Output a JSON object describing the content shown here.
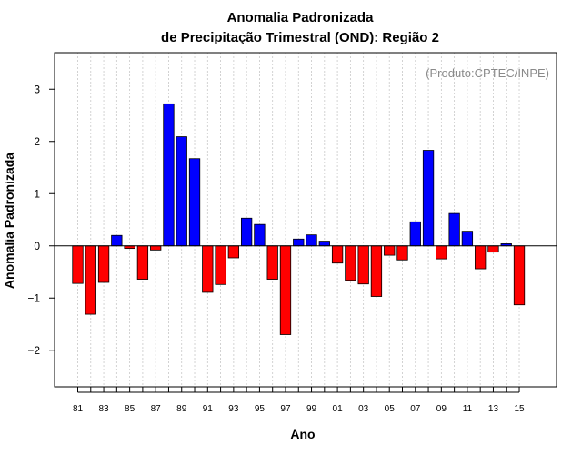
{
  "chart_data": {
    "type": "bar",
    "title": "Anomalia Padronizada",
    "subtitle": "de Precipitação Trimestral (OND): Região 2",
    "annotation": "(Produto:CPTEC/INPE)",
    "xlabel": "Ano",
    "ylabel": "Anomalia Padronizada",
    "ylim": [
      -2.7,
      3.7
    ],
    "yticks": [
      -2,
      -1,
      0,
      1,
      2,
      3
    ],
    "x_ticks_shown": [
      "81",
      "83",
      "85",
      "87",
      "89",
      "91",
      "93",
      "95",
      "97",
      "99",
      "01",
      "03",
      "05",
      "07",
      "09",
      "11",
      "13",
      "15"
    ],
    "grid": "vertical dotted",
    "positive_color": "#0000ff",
    "negative_color": "#ff0000",
    "categories": [
      "81",
      "82",
      "83",
      "84",
      "85",
      "86",
      "87",
      "88",
      "89",
      "90",
      "91",
      "92",
      "93",
      "94",
      "95",
      "96",
      "97",
      "98",
      "99",
      "00",
      "01",
      "02",
      "03",
      "04",
      "05",
      "06",
      "07",
      "08",
      "09",
      "10",
      "11",
      "12",
      "13",
      "14",
      "15"
    ],
    "values": [
      -0.72,
      -1.31,
      -0.7,
      0.2,
      -0.05,
      -0.64,
      -0.08,
      2.72,
      2.09,
      1.67,
      -0.89,
      -0.74,
      -0.23,
      0.53,
      0.41,
      -0.64,
      -1.7,
      0.13,
      0.21,
      0.09,
      -0.33,
      -0.66,
      -0.73,
      -0.97,
      -0.18,
      -0.27,
      0.46,
      1.83,
      -0.25,
      0.62,
      0.28,
      -0.44,
      -0.12,
      0.04,
      -1.13
    ]
  }
}
